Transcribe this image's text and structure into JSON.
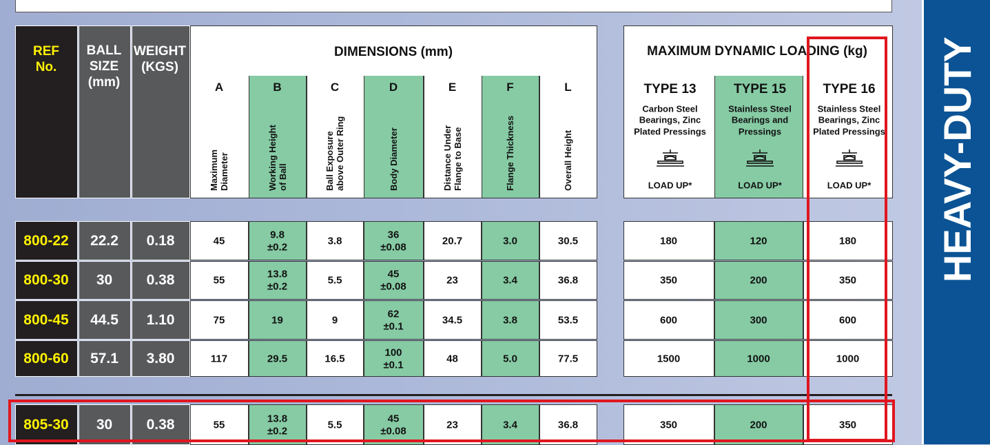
{
  "header_cells": {
    "ref": [
      "REF",
      "No."
    ],
    "ball_size": [
      "BALL",
      "SIZE",
      "(mm)"
    ],
    "weight": [
      "WEIGHT",
      "(KGS)"
    ]
  },
  "dimensions": {
    "title": "DIMENSIONS (mm)",
    "columns": [
      {
        "letter": "A",
        "description": [
          "Maximum",
          "Diameter"
        ]
      },
      {
        "letter": "B",
        "description": [
          "Working Height",
          "of Ball"
        ]
      },
      {
        "letter": "C",
        "description": [
          "Ball Exposure",
          "above Outer Ring"
        ]
      },
      {
        "letter": "D",
        "description": [
          "Body Diameter"
        ]
      },
      {
        "letter": "E",
        "description": [
          "Distance Under",
          "Flange to Base"
        ]
      },
      {
        "letter": "F",
        "description": [
          "Flange Thickness"
        ]
      },
      {
        "letter": "L",
        "description": [
          "Overall Height"
        ]
      }
    ]
  },
  "loading": {
    "title": "MAXIMUM DYNAMIC LOADING (kg)",
    "types": [
      {
        "name": "TYPE 13",
        "description": [
          "Carbon Steel",
          "Bearings, Zinc",
          "Plated Pressings"
        ],
        "load": "LOAD UP*"
      },
      {
        "name": "TYPE 15",
        "description": [
          "Stainless Steel",
          "Bearings and",
          "Pressings"
        ],
        "load": "LOAD UP*"
      },
      {
        "name": "TYPE 16",
        "description": [
          "Stainless Steel",
          "Bearings, Zinc",
          "Plated Pressings"
        ],
        "load": "LOAD UP*"
      }
    ]
  },
  "rows": [
    [
      "800-22",
      "22.2",
      "0.18",
      "45",
      [
        "9.8",
        "±0.2"
      ],
      "3.8",
      [
        "36",
        "±0.08"
      ],
      "20.7",
      "3.0",
      "30.5",
      "180",
      "120",
      "180"
    ],
    [
      "800-30",
      "30",
      "0.38",
      "55",
      [
        "13.8",
        "±0.2"
      ],
      "5.5",
      [
        "45",
        "±0.08"
      ],
      "23",
      "3.4",
      "36.8",
      "350",
      "200",
      "350"
    ],
    [
      "800-45",
      "44.5",
      "1.10",
      "75",
      "19",
      "9",
      [
        "62",
        "±0.1"
      ],
      "34.5",
      "3.8",
      "53.5",
      "600",
      "300",
      "600"
    ],
    [
      "800-60",
      "57.1",
      "3.80",
      "117",
      "29.5",
      "16.5",
      [
        "100",
        "±0.1"
      ],
      "48",
      "5.0",
      "77.5",
      "1500",
      "1000",
      "1000"
    ],
    [
      "805-30",
      "30",
      "0.38",
      "55",
      [
        "13.8",
        "±0.2"
      ],
      "5.5",
      [
        "45",
        "±0.08"
      ],
      "23",
      "3.4",
      "36.8",
      "350",
      "200",
      "350"
    ]
  ],
  "side_banner": "HEAVY-DUTY"
}
